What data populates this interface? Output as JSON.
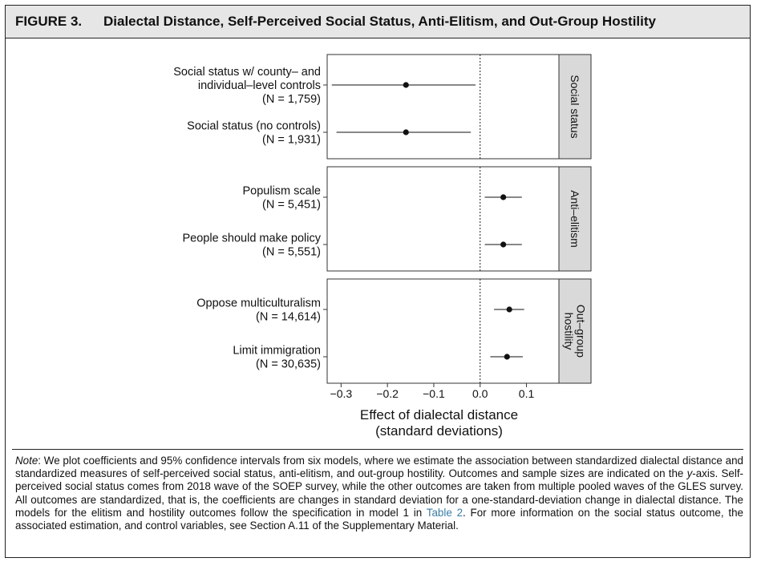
{
  "figure": {
    "label": "FIGURE 3.",
    "title": "Dialectal Distance, Self-Perceived Social Status, Anti-Elitism, and Out-Group Hostility"
  },
  "chart_data": {
    "type": "scatter",
    "subtype": "coefficient-plot-with-95ci",
    "xlabel": "Effect of dialectal distance\n(standard deviations)",
    "xlim": [
      -0.33,
      0.17
    ],
    "xticks": [
      -0.3,
      -0.2,
      -0.1,
      0.0,
      0.1
    ],
    "xtick_labels": [
      "−0.3",
      "−0.2",
      "−0.1",
      "0.0",
      "0.1"
    ],
    "reference_line": 0,
    "grid": false,
    "panels": [
      {
        "strip": "Social status",
        "rows": [
          {
            "label": "Social status w/ county– and\nindividual–level controls\n(N = 1,759)",
            "estimate": -0.16,
            "ci_low": -0.32,
            "ci_high": -0.01
          },
          {
            "label": "Social status (no controls)\n(N = 1,931)",
            "estimate": -0.16,
            "ci_low": -0.31,
            "ci_high": -0.02
          }
        ]
      },
      {
        "strip": "Anti–elitism",
        "rows": [
          {
            "label": "Populism scale\n(N = 5,451)",
            "estimate": 0.05,
            "ci_low": 0.01,
            "ci_high": 0.09
          },
          {
            "label": "People should make policy\n(N = 5,551)",
            "estimate": 0.05,
            "ci_low": 0.01,
            "ci_high": 0.09
          }
        ]
      },
      {
        "strip": "Out–group\nhostility",
        "rows": [
          {
            "label": "Oppose multiculturalism\n(N = 14,614)",
            "estimate": 0.063,
            "ci_low": 0.03,
            "ci_high": 0.095
          },
          {
            "label": "Limit immigration\n(N = 30,635)",
            "estimate": 0.058,
            "ci_low": 0.022,
            "ci_high": 0.092
          }
        ]
      }
    ]
  },
  "note": {
    "label": "Note",
    "text_before_link": ": We plot coefficients and 95% confidence intervals from six models, where we estimate the association between standardized dialectal distance and standardized measures of self-perceived social status, anti-elitism, and out-group hostility. Outcomes and sample sizes are indicated on the ",
    "y_axis_word": "y",
    "text_mid": "-axis. Self-perceived social status comes from 2018 wave of the SOEP survey, while the other outcomes are taken from multiple pooled waves of the GLES survey. All outcomes are standardized, that is, the coefficients are changes in standard deviation for a one-standard-deviation change in dialectal distance. The models for the elitism and hostility outcomes follow the specification in model 1 in ",
    "link_text": "Table 2",
    "text_after_link": ". For more information on the social status outcome, the associated estimation, and control variables, see Section A.11 of the Supplementary Material."
  }
}
